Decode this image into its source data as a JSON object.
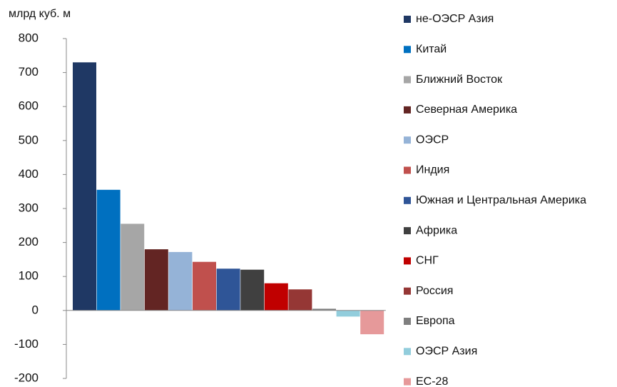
{
  "chart_data": {
    "type": "bar",
    "y_label": "млрд куб. м",
    "series": [
      {
        "name": "не-ОЭСР Азия",
        "color": "#1f3864",
        "values": [
          730
        ]
      },
      {
        "name": "Китай",
        "color": "#0070c0",
        "values": [
          355
        ]
      },
      {
        "name": "Ближний Восток",
        "color": "#a6a6a6",
        "values": [
          255
        ]
      },
      {
        "name": "Северная Америка",
        "color": "#632523",
        "values": [
          180
        ]
      },
      {
        "name": "ОЭСР",
        "color": "#95b3d7",
        "values": [
          172
        ]
      },
      {
        "name": "Индия",
        "color": "#c0504d",
        "values": [
          143
        ]
      },
      {
        "name": "Южная и Центральная Америка",
        "color": "#2f5597",
        "values": [
          123
        ]
      },
      {
        "name": "Африка",
        "color": "#404040",
        "values": [
          120
        ]
      },
      {
        "name": "СНГ",
        "color": "#c00000",
        "values": [
          80
        ]
      },
      {
        "name": "Россия",
        "color": "#953735",
        "values": [
          62
        ]
      },
      {
        "name": "Европа",
        "color": "#7f7f7f",
        "values": [
          5
        ]
      },
      {
        "name": "ОЭСР Азия",
        "color": "#92cddc",
        "values": [
          -18
        ]
      },
      {
        "name": "ЕС-28",
        "color": "#e6999a",
        "values": [
          -70
        ]
      }
    ],
    "ylim": [
      -200,
      800
    ],
    "yticks": [
      -200,
      -100,
      0,
      100,
      200,
      300,
      400,
      500,
      600,
      700,
      800
    ],
    "legend": "right"
  }
}
